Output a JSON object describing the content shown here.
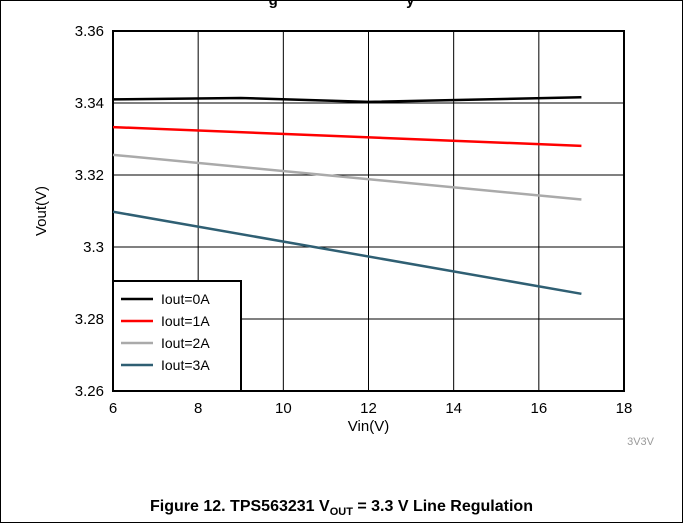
{
  "header": {
    "left_fragment": "g",
    "right_fragment": "y"
  },
  "footer": {
    "caption_pre": "Figure 12. TPS563231 V",
    "caption_sub": "OUT",
    "caption_post": " = 3.3 V Line Regulation"
  },
  "chart_data": {
    "type": "line",
    "title": "",
    "xlabel": "Vin(V)",
    "ylabel": "Vout(V)",
    "xlim": [
      6,
      18
    ],
    "ylim": [
      3.26,
      3.36
    ],
    "xticks": [
      "6",
      "8",
      "10",
      "12",
      "14",
      "16",
      "18"
    ],
    "yticks": [
      "3.26",
      "3.28",
      "3.3",
      "3.32",
      "3.34",
      "3.36"
    ],
    "grid": true,
    "legend_position": "bottom-left",
    "annotation": "3V3V",
    "series": [
      {
        "name": "Iout=0A",
        "color": "#000000",
        "x": [
          6,
          9,
          12,
          17
        ],
        "y": [
          3.341,
          3.3414,
          3.3403,
          3.3416
        ]
      },
      {
        "name": "Iout=1A",
        "color": "#ff0000",
        "x": [
          6,
          17
        ],
        "y": [
          3.3333,
          3.3281
        ]
      },
      {
        "name": "Iout=2A",
        "color": "#aaaaaa",
        "x": [
          6,
          17
        ],
        "y": [
          3.3256,
          3.3132
        ]
      },
      {
        "name": "Iout=3A",
        "color": "#2f5f73",
        "x": [
          6,
          17
        ],
        "y": [
          3.3098,
          3.287
        ]
      }
    ]
  }
}
